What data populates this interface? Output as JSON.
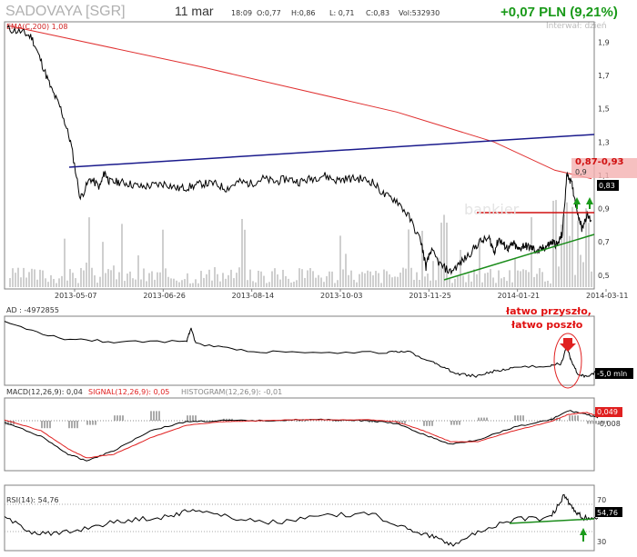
{
  "header": {
    "ticker": "SADOVAYA [SGR]",
    "date": "11 mar",
    "time": "18:09",
    "open": "O:0,77",
    "high": "H:0,86",
    "low": "L: 0,71",
    "close": "C:0,83",
    "volume": "Vol:532930",
    "change": "+0,07 PLN (9,21%)",
    "interval": "Interwał: dzień"
  },
  "colors": {
    "price": "#000000",
    "ema": "#e03030",
    "upper_trend": "#1a1a8c",
    "support_trend": "#1a8c1a",
    "resistance": "#d01010",
    "volume": "#c8c8c8",
    "macd_signal": "#e02020",
    "accent_green": "#1a9a1a"
  },
  "chart_data": [
    {
      "type": "line",
      "panel": "price",
      "ema_label": "EMA(C,200) 1,08",
      "xlabels": [
        "2013-05-07",
        "2013-06-26",
        "2013-08-14",
        "2013-10-03",
        "2013-11-25",
        "2014-01-21",
        "2014-03-11"
      ],
      "ylabels": [
        "1,9",
        "1,7",
        "1,5",
        "1,3",
        "1,1",
        "0,9",
        "0,7",
        "0,5"
      ],
      "ylim": [
        0.45,
        2.0
      ],
      "price_x": [
        0,
        6,
        10,
        14,
        18,
        22,
        26,
        30,
        34,
        38,
        40,
        42,
        46,
        50,
        55,
        60,
        65,
        70,
        75,
        80,
        85,
        90,
        95,
        100,
        105,
        110,
        115,
        120,
        125,
        130,
        135,
        140,
        145,
        150,
        155,
        160,
        165,
        170,
        172,
        174,
        178,
        182,
        186,
        190,
        194,
        198,
        200,
        202,
        204,
        206,
        208,
        210,
        212,
        214,
        216,
        218,
        220,
        222,
        224,
        226,
        228,
        230,
        232,
        234,
        236,
        238,
        240
      ],
      "price_y": [
        1.98,
        1.96,
        1.93,
        1.78,
        1.62,
        1.5,
        1.3,
        0.96,
        1.08,
        1.03,
        1.12,
        1.06,
        1.06,
        1.05,
        1.03,
        1.04,
        1.05,
        1.02,
        1.03,
        1.05,
        1.05,
        1.02,
        1.06,
        1.05,
        1.08,
        1.06,
        1.08,
        1.06,
        1.08,
        1.1,
        1.07,
        1.08,
        1.08,
        1.06,
        0.98,
        0.95,
        0.85,
        0.7,
        0.55,
        0.65,
        0.56,
        0.52,
        0.57,
        0.63,
        0.7,
        0.72,
        0.64,
        0.72,
        0.68,
        0.66,
        0.69,
        0.65,
        0.68,
        0.67,
        0.66,
        0.64,
        0.66,
        0.68,
        0.7,
        0.68,
        0.75,
        1.12,
        1.04,
        0.9,
        0.78,
        0.86,
        0.83
      ],
      "ema_x": [
        0,
        80,
        160,
        200,
        225,
        240
      ],
      "ema_y": [
        2.2,
        1.75,
        1.48,
        1.3,
        1.13,
        1.08
      ],
      "volume_note": "histogram in background",
      "annotations": [
        "0,87-0,93",
        "0,9",
        "0,83",
        "0,7"
      ]
    },
    {
      "type": "line",
      "panel": "AD",
      "label": "AD : -4972855",
      "value_label": "-5,0 mln",
      "annotation": "łatwo przyszło, łatwo poszło"
    },
    {
      "type": "line",
      "panel": "MACD",
      "label_macd": "MACD(12,26,9): 0,04",
      "label_signal": "SIGNAL(12,26,9): 0,05",
      "label_hist": "HISTOGRAM(12,26,9): -0,01",
      "value_labels": [
        "0,049",
        "-0,008"
      ]
    },
    {
      "type": "line",
      "panel": "RSI",
      "label": "RSI(14): 54,76",
      "ylabels": [
        "70",
        "30"
      ],
      "value_label": "54,76"
    }
  ]
}
